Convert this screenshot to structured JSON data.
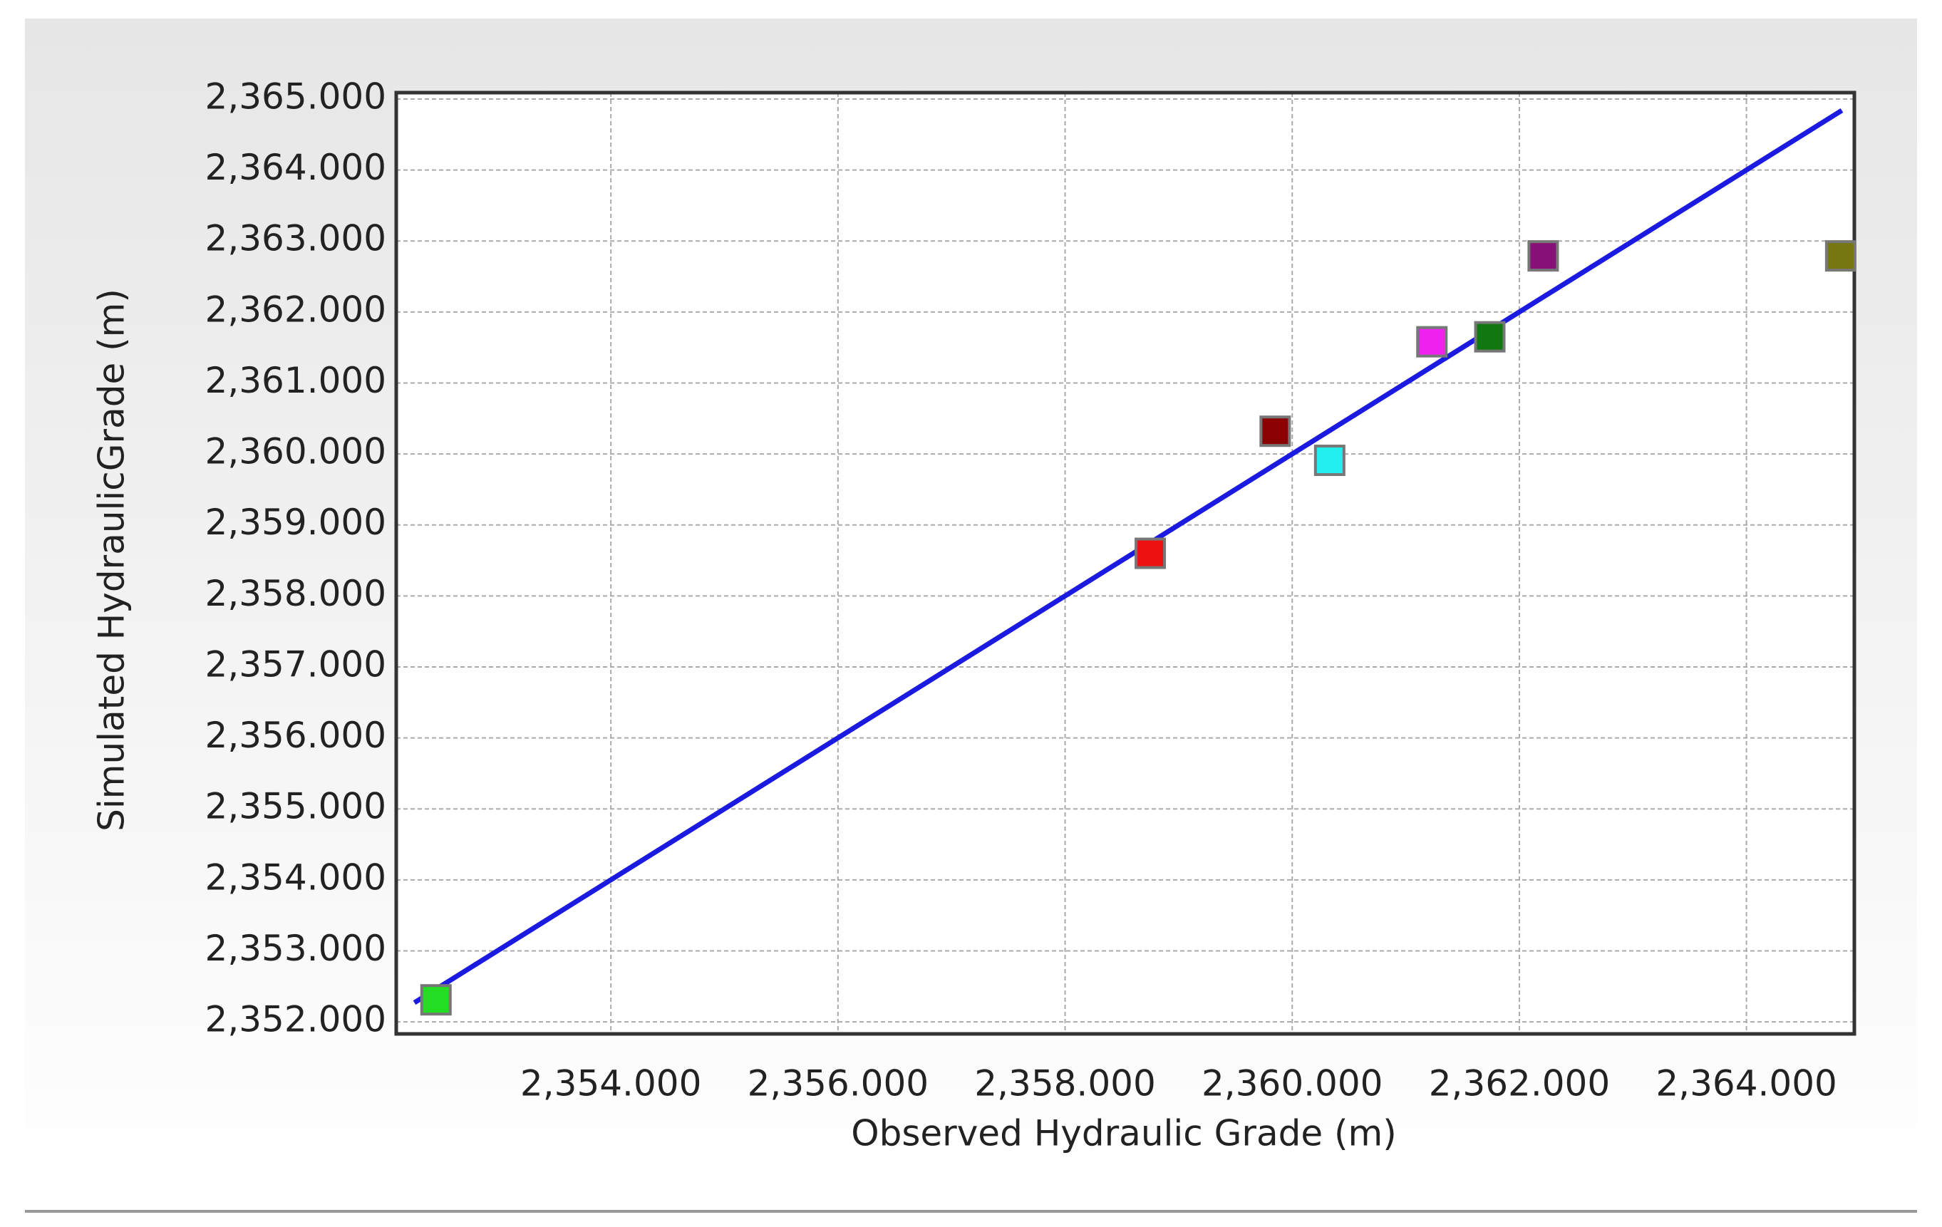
{
  "chart_data": {
    "type": "scatter",
    "x_label": "Observed Hydraulic Grade (m)",
    "y_label": "Simulated HydraulicGrade (m)",
    "x": [
      2352.46,
      2358.75,
      2359.85,
      2360.33,
      2361.23,
      2361.74,
      2362.21,
      2364.83
    ],
    "values": [
      2352.31,
      2358.6,
      2360.32,
      2359.91,
      2361.58,
      2361.65,
      2362.79,
      2362.79
    ],
    "colors": [
      "#22dd22",
      "#ee1111",
      "#8b0000",
      "#22eeee",
      "#ee22ee",
      "#117711",
      "#881177",
      "#777711"
    ],
    "fit_line": {
      "x": [
        2352.27,
        2364.84
      ],
      "values": [
        2352.27,
        2364.84
      ],
      "color": "#1a1ae0"
    },
    "xlim": [
      2352.11,
      2364.95
    ],
    "ylim": [
      2351.83,
      2365.09
    ],
    "xticks": [
      {
        "value": 2354,
        "label": "2,354.000"
      },
      {
        "value": 2356,
        "label": "2,356.000"
      },
      {
        "value": 2358,
        "label": "2,358.000"
      },
      {
        "value": 2360,
        "label": "2,360.000"
      },
      {
        "value": 2362,
        "label": "2,362.000"
      },
      {
        "value": 2364,
        "label": "2,364.000"
      }
    ],
    "yticks": [
      {
        "value": 2352,
        "label": "2,352.000"
      },
      {
        "value": 2353,
        "label": "2,353.000"
      },
      {
        "value": 2354,
        "label": "2,354.000"
      },
      {
        "value": 2355,
        "label": "2,355.000"
      },
      {
        "value": 2356,
        "label": "2,356.000"
      },
      {
        "value": 2357,
        "label": "2,357.000"
      },
      {
        "value": 2358,
        "label": "2,358.000"
      },
      {
        "value": 2359,
        "label": "2,359.000"
      },
      {
        "value": 2360,
        "label": "2,360.000"
      },
      {
        "value": 2361,
        "label": "2,361.000"
      },
      {
        "value": 2362,
        "label": "2,362.000"
      },
      {
        "value": 2363,
        "label": "2,363.000"
      },
      {
        "value": 2364,
        "label": "2,364.000"
      },
      {
        "value": 2365,
        "label": "2,365.000"
      }
    ],
    "grid": true
  }
}
